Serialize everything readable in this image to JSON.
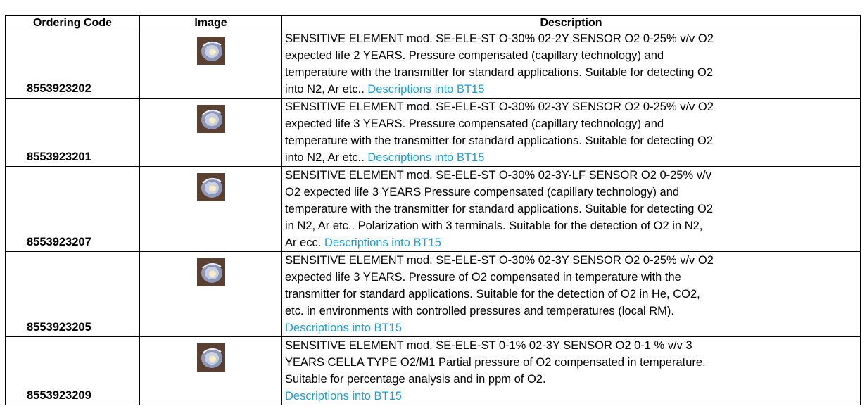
{
  "table": {
    "headers": [
      "Ordering Code",
      "Image",
      "Description"
    ],
    "rows": [
      {
        "code": "8553923202",
        "lines": [
          "SENSITIVE ELEMENT mod. SE-ELE-ST O-30% 02-2Y SENSOR O2 0-25% v/v O2",
          "expected life 2 YEARS. Pressure compensated (capillary technology) and",
          "temperature with the transmitter for standard applications. Suitable for detecting O2"
        ],
        "tail": "into N2, Ar etc.. ",
        "link": "Descriptions into BT15"
      },
      {
        "code": "8553923201",
        "lines": [
          "SENSITIVE ELEMENT mod. SE-ELE-ST O-30% 02-3Y SENSOR O2 0-25% v/v O2",
          "expected life 3 YEARS. Pressure compensated (capillary technology) and",
          "temperature with the transmitter for standard applications. Suitable for detecting O2"
        ],
        "tail": "into N2, Ar etc.. ",
        "link": "Descriptions into BT15"
      },
      {
        "code": "8553923207",
        "lines": [
          "SENSITIVE ELEMENT mod. SE-ELE-ST O-30% 02-3Y-LF SENSOR O2 0-25% v/v",
          "O2 expected life 3 YEARS Pressure compensated (capillary technology) and",
          "temperature with the transmitter for standard applications. Suitable for detecting O2",
          "in N2, Ar etc.. Polarization with 3 terminals. Suitable for the detection of O2 in N2,"
        ],
        "tail": "Ar  ecc. ",
        "link": "Descriptions into BT15"
      },
      {
        "code": "8553923205",
        "lines": [
          "SENSITIVE ELEMENT mod. SE-ELE-ST O-30% 02-3Y SENSOR O2 0-25% v/v O2",
          "expected life 3 YEARS. Pressure of O2 compensated in temperature with the",
          "transmitter for standard applications. Suitable for the detection of O2 in He, CO2,",
          "etc. in environments with controlled pressures and temperatures (local RM)."
        ],
        "link": "Descriptions into BT15"
      },
      {
        "code": "8553923209",
        "lines": [
          "SENSITIVE ELEMENT mod. SE-ELE-ST 0-1% 02-3Y SENSOR O2 0-1 % v/v 3",
          "YEARS CELLA TYPE O2/M1 Partial pressure of O2 compensated in temperature.",
          "Suitable for percentage analysis and in ppm of O2."
        ],
        "link": "Descriptions into BT15"
      }
    ]
  }
}
